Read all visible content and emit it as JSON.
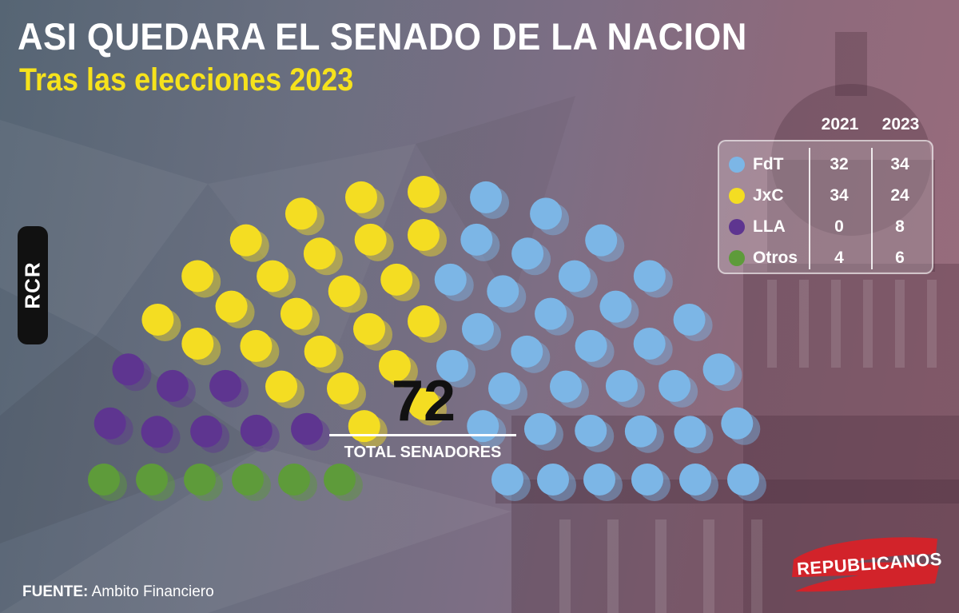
{
  "header": {
    "title": "ASI QUEDARA EL SENADO DE LA NACION",
    "subtitle": "Tras las elecciones 2023"
  },
  "badge": {
    "text": "RCR"
  },
  "total": {
    "number": "72",
    "label": "TOTAL SENADORES"
  },
  "legend": {
    "columns": [
      "2021",
      "2023"
    ],
    "rows": [
      {
        "name": "FdT",
        "color": "#7cb6e6",
        "v2021": "32",
        "v2023": "34"
      },
      {
        "name": "JxC",
        "color": "#f4dd22",
        "v2021": "34",
        "v2023": "24"
      },
      {
        "name": "LLA",
        "color": "#5e3590",
        "v2021": "0",
        "v2023": "8"
      },
      {
        "name": "Otros",
        "color": "#5e9b3a",
        "v2021": "4",
        "v2023": "6"
      }
    ]
  },
  "source": {
    "label": "FUENTE:",
    "text": "Ambito Financiero"
  },
  "logo": {
    "text": "REPUBLICANOS"
  },
  "chart_data": {
    "type": "parliament",
    "total_seats": 72,
    "categories": [
      "FdT",
      "JxC",
      "LLA",
      "Otros"
    ],
    "series": [
      {
        "name": "2021",
        "values": [
          32,
          34,
          0,
          4
        ]
      },
      {
        "name": "2023",
        "values": [
          34,
          24,
          8,
          6
        ]
      }
    ],
    "depicted_series": "2023",
    "colors": {
      "FdT": "#7cb6e6",
      "JxC": "#f4dd22",
      "LLA": "#5e3590",
      "Otros": "#5e9b3a"
    }
  }
}
